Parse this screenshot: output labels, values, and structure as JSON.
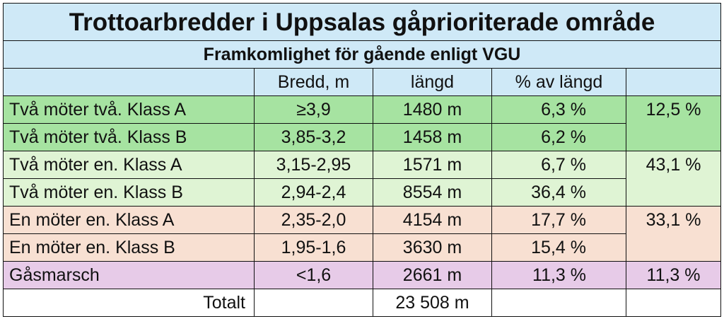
{
  "title": "Trottoarbredder i Uppsalas gåprioriterade område",
  "subtitle": "Framkomlighet för gående enligt VGU",
  "headers": {
    "bredd": "Bredd, m",
    "langd": "längd",
    "pct": "% av längd"
  },
  "rows": [
    {
      "label": "Två möter två. Klass A",
      "bredd": "≥3,9",
      "langd": "1480 m",
      "pct": "6,3 %"
    },
    {
      "label": "Två möter två. Klass B",
      "bredd": "3,85-3,2",
      "langd": "1458 m",
      "pct": "6,2 %"
    },
    {
      "label": "Två möter en. Klass A",
      "bredd": "3,15-2,95",
      "langd": "1571 m",
      "pct": "6,7 %"
    },
    {
      "label": "Två möter en. Klass B",
      "bredd": "2,94-2,4",
      "langd": "8554 m",
      "pct": "36,4 %"
    },
    {
      "label": "En möter en. Klass A",
      "bredd": "2,35-2,0",
      "langd": "4154 m",
      "pct": "17,7 %"
    },
    {
      "label": "En möter en. Klass B",
      "bredd": "1,95-1,6",
      "langd": "3630 m",
      "pct": "15,4 %"
    },
    {
      "label": "Gåsmarsch",
      "bredd": "<1,6",
      "langd": "2661 m",
      "pct": "11,3 %"
    }
  ],
  "groups": [
    "12,5 %",
    "43,1 %",
    "33,1 %",
    "11,3 %"
  ],
  "total": {
    "label": "Totalt",
    "langd": "23 508 m"
  },
  "colors": {
    "header": "#cfe9f7",
    "group1": "#a6e3a1",
    "group2": "#dff4d4",
    "group3": "#f8e0d2",
    "group4": "#e7cbe8"
  }
}
